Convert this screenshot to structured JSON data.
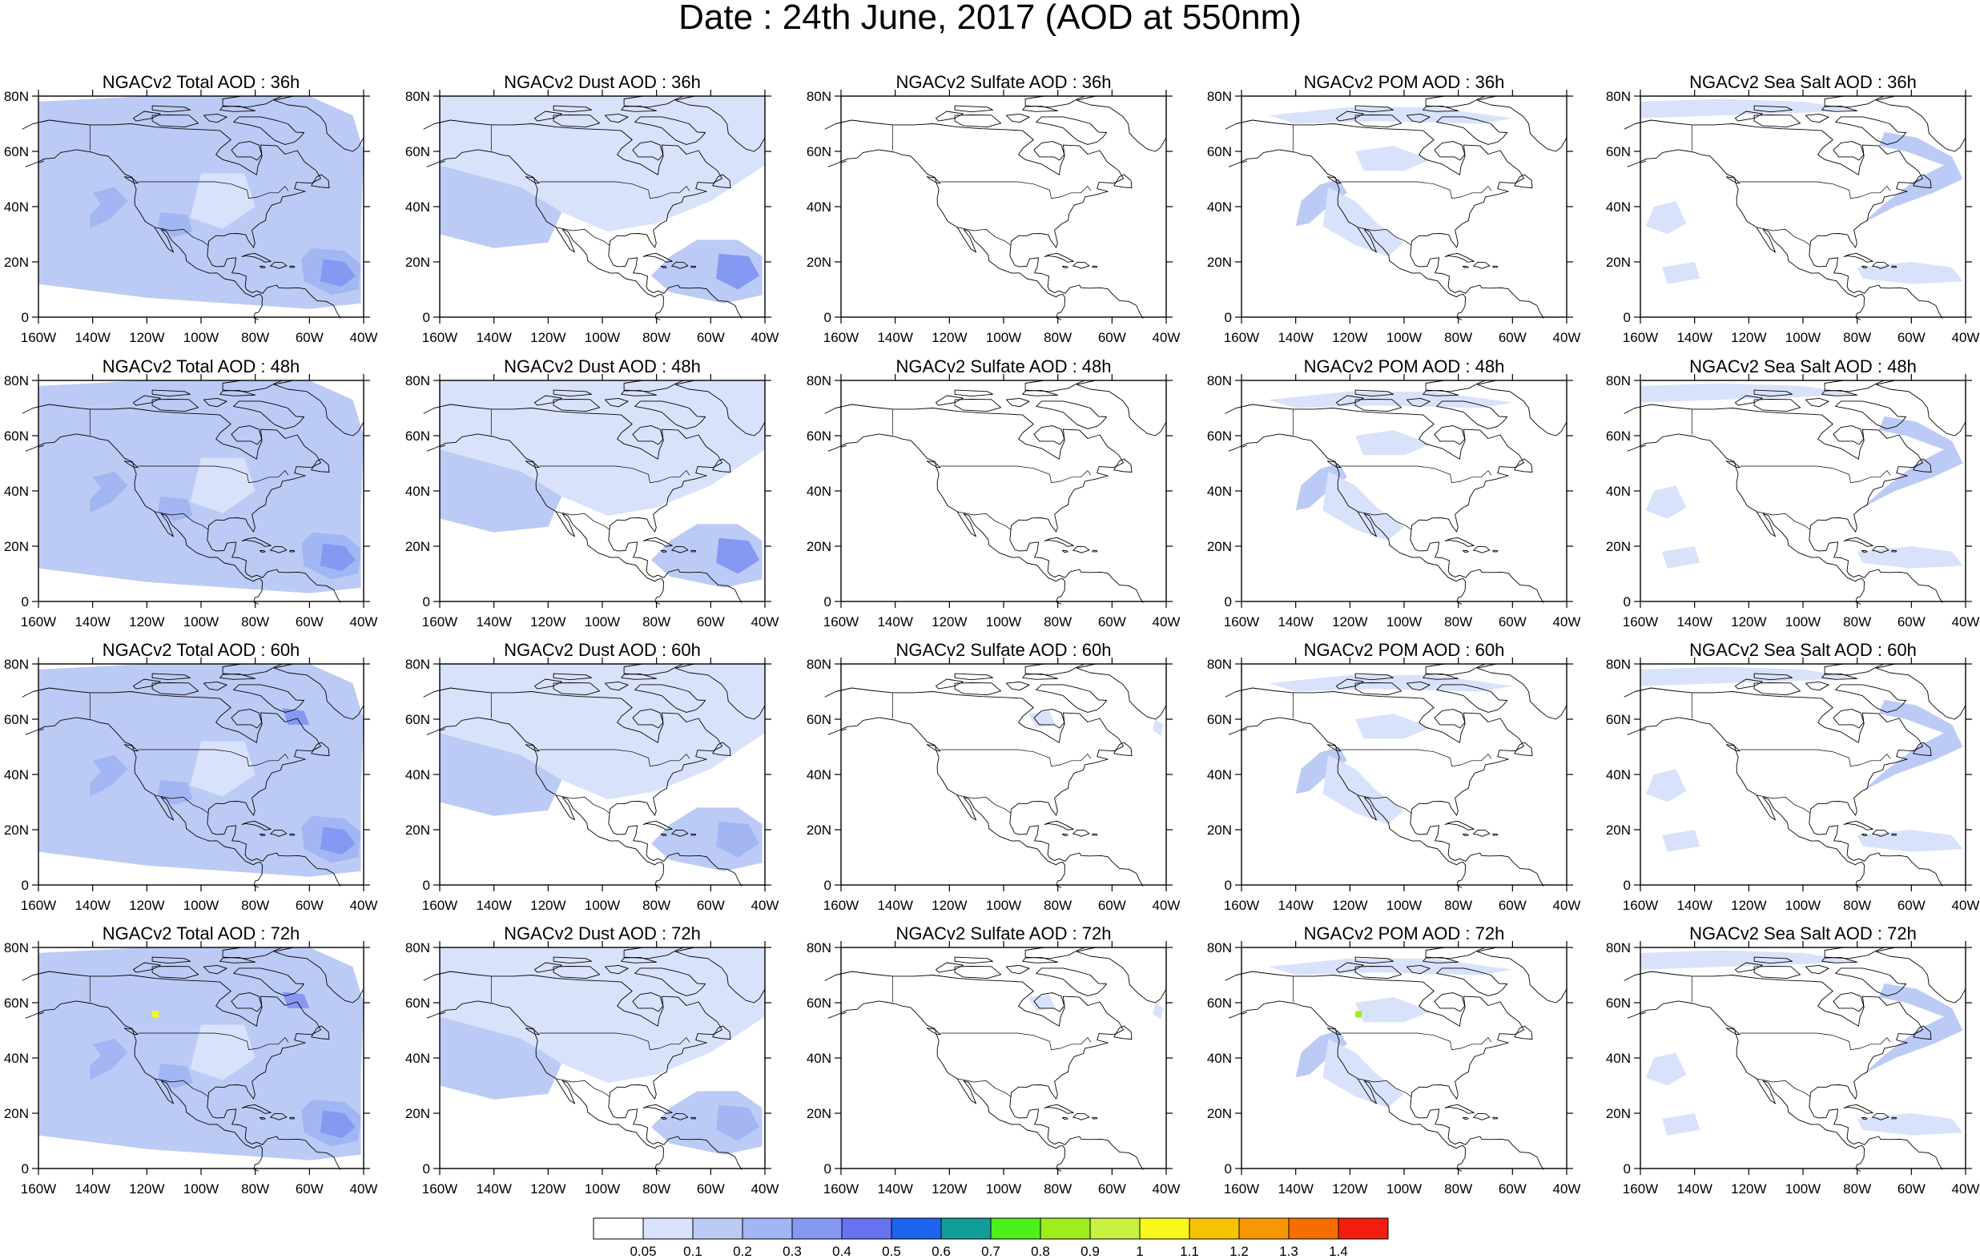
{
  "title": "Date : 24th June, 2017 (AOD at 550nm)",
  "x_tick_labels": [
    "160W",
    "140W",
    "120W",
    "100W",
    "80W",
    "60W",
    "40W"
  ],
  "y_tick_labels": [
    "80N",
    "60N",
    "40N",
    "20N",
    "0"
  ],
  "panels": [
    [
      "NGACv2 Total AOD : 36h",
      "NGACv2 Dust AOD : 36h",
      "NGACv2 Sulfate AOD : 36h",
      "NGACv2 POM AOD : 36h",
      "NGACv2 Sea Salt AOD : 36h"
    ],
    [
      "NGACv2 Total AOD : 48h",
      "NGACv2 Dust AOD : 48h",
      "NGACv2 Sulfate AOD : 48h",
      "NGACv2 POM AOD : 48h",
      "NGACv2 Sea Salt AOD : 48h"
    ],
    [
      "NGACv2 Total AOD : 60h",
      "NGACv2 Dust AOD : 60h",
      "NGACv2 Sulfate AOD : 60h",
      "NGACv2 POM AOD : 60h",
      "NGACv2 Sea Salt AOD : 60h"
    ],
    [
      "NGACv2 Total AOD : 72h",
      "NGACv2 Dust AOD : 72h",
      "NGACv2 Sulfate AOD : 72h",
      "NGACv2 POM AOD : 72h",
      "NGACv2 Sea Salt  AOD : 72h"
    ]
  ],
  "colorbar": {
    "labels": [
      "0.05",
      "0.1",
      "0.2",
      "0.3",
      "0.4",
      "0.5",
      "0.6",
      "0.7",
      "0.8",
      "0.9",
      "1",
      "1.1",
      "1.2",
      "1.3",
      "1.4"
    ],
    "colors": [
      "#ffffff",
      "#d9e2fb",
      "#bccbf5",
      "#a1b6f3",
      "#8598f2",
      "#6772ee",
      "#1e62f0",
      "#119d9a",
      "#4cf01d",
      "#9cee1d",
      "#c8f040",
      "#faf81a",
      "#f7c300",
      "#f79800",
      "#f76e00",
      "#f51e0e"
    ]
  }
}
